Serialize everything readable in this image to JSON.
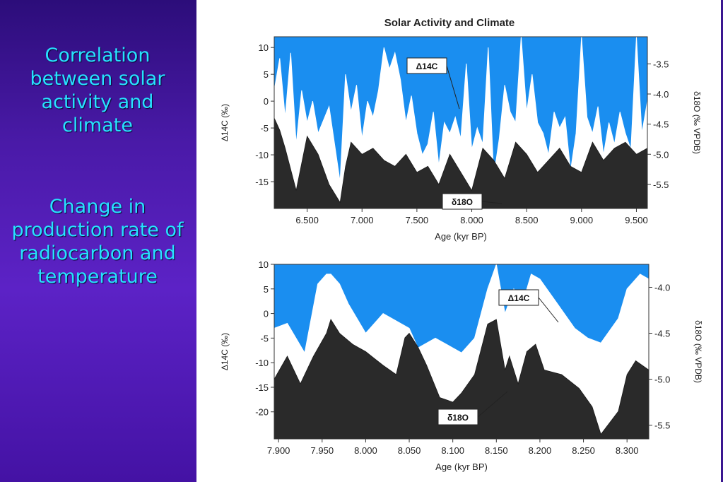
{
  "slide": {
    "heading": "Correlation between solar activity and climate",
    "subheading": "Change in production rate of radiocarbon and temperature",
    "figure_title": "Solar Activity and Climate",
    "colors": {
      "panel": "#4a1aa8",
      "text": "#27e2ff",
      "sky": "#1a8ef0",
      "dark": "#2a2a2a"
    }
  },
  "chart_data": [
    {
      "type": "area",
      "title": "Solar Activity and Climate",
      "xlabel": "Age (kyr BP)",
      "ylabel": "Δ14C (‰)",
      "y2label": "δ18O (‰ VPDB)",
      "xlim": [
        6.2,
        9.6
      ],
      "ylim": [
        -20,
        12
      ],
      "y2lim": [
        -5.9,
        -3.05
      ],
      "xticks": [
        "6.500",
        "7.000",
        "7.500",
        "8.000",
        "8.500",
        "9.000",
        "9.500"
      ],
      "yticks": [
        "10",
        "5",
        "0",
        "-5",
        "-10",
        "-15"
      ],
      "y2ticks": [
        "-3.5",
        "-4.0",
        "-4.5",
        "-5.0",
        "-5.5"
      ],
      "annotations": [
        "Δ14C",
        "δ18O"
      ],
      "series": [
        {
          "name": "Δ14C",
          "x": [
            6.2,
            6.25,
            6.3,
            6.35,
            6.4,
            6.45,
            6.5,
            6.55,
            6.6,
            6.7,
            6.8,
            6.85,
            6.9,
            6.95,
            7.0,
            7.05,
            7.1,
            7.15,
            7.2,
            7.25,
            7.3,
            7.35,
            7.4,
            7.45,
            7.5,
            7.55,
            7.6,
            7.65,
            7.7,
            7.75,
            7.8,
            7.85,
            7.9,
            7.95,
            8.0,
            8.05,
            8.1,
            8.15,
            8.2,
            8.25,
            8.3,
            8.35,
            8.4,
            8.45,
            8.5,
            8.55,
            8.6,
            8.65,
            8.7,
            8.75,
            8.8,
            8.85,
            8.9,
            8.95,
            9.0,
            9.05,
            9.1,
            9.15,
            9.2,
            9.25,
            9.3,
            9.35,
            9.4,
            9.45,
            9.5,
            9.55,
            9.6
          ],
          "values": [
            2,
            8,
            -3,
            9,
            -8,
            2,
            -4,
            0,
            -6,
            -1,
            -15,
            5,
            -2,
            3,
            -7,
            0,
            -3,
            2,
            10,
            6,
            9,
            4,
            -4,
            1,
            -6,
            -10,
            -8,
            -2,
            -12,
            -4,
            -6,
            -3,
            -7,
            7,
            -9,
            -5,
            -8,
            10,
            -14,
            -7,
            3,
            -2,
            -4,
            12,
            -2,
            5,
            -4,
            -6,
            -10,
            -2,
            -5,
            -3,
            -13,
            -6,
            13,
            -3,
            -6,
            -1,
            -10,
            -4,
            -8,
            -2,
            -6,
            -9,
            12,
            -6,
            0
          ]
        },
        {
          "name": "δ18O",
          "x": [
            6.2,
            6.25,
            6.3,
            6.4,
            6.5,
            6.6,
            6.7,
            6.8,
            6.85,
            6.9,
            7.0,
            7.1,
            7.2,
            7.3,
            7.4,
            7.5,
            7.6,
            7.7,
            7.8,
            7.9,
            8.0,
            8.1,
            8.2,
            8.3,
            8.4,
            8.5,
            8.6,
            8.7,
            8.8,
            8.9,
            9.0,
            9.1,
            9.2,
            9.3,
            9.4,
            9.5,
            9.6
          ],
          "values": [
            -4.4,
            -4.6,
            -4.9,
            -5.6,
            -4.7,
            -5.0,
            -5.5,
            -5.8,
            -5.2,
            -4.8,
            -5.0,
            -4.9,
            -5.1,
            -5.2,
            -5.0,
            -5.3,
            -5.2,
            -5.5,
            -5.0,
            -5.3,
            -5.6,
            -4.9,
            -5.1,
            -5.4,
            -4.8,
            -5.0,
            -5.3,
            -5.1,
            -4.9,
            -5.2,
            -5.3,
            -4.8,
            -5.1,
            -4.9,
            -4.8,
            -5.0,
            -4.9
          ]
        }
      ]
    },
    {
      "type": "area",
      "xlabel": "Age (kyr BP)",
      "ylabel": "Δ14C (‰)",
      "y2label": "δ18O (‰ VPDB)",
      "xlim": [
        7.895,
        8.325
      ],
      "ylim": [
        -25.5,
        10
      ],
      "y2lim": [
        -5.65,
        -3.75
      ],
      "xticks": [
        "7.900",
        "7.950",
        "8.000",
        "8.050",
        "8.100",
        "8.150",
        "8.200",
        "8.250",
        "8.300"
      ],
      "yticks": [
        "10",
        "5",
        "0",
        "-5",
        "-10",
        "-15",
        "-20"
      ],
      "y2ticks": [
        "-4.0",
        "-4.5",
        "-5.0",
        "-5.5"
      ],
      "annotations": [
        "Δ14C",
        "δ18O"
      ],
      "series": [
        {
          "name": "Δ14C",
          "x": [
            7.895,
            7.91,
            7.93,
            7.945,
            7.955,
            7.96,
            7.97,
            7.98,
            8.0,
            8.02,
            8.03,
            8.05,
            8.06,
            8.08,
            8.09,
            8.11,
            8.125,
            8.14,
            8.15,
            8.16,
            8.17,
            8.18,
            8.19,
            8.2,
            8.22,
            8.24,
            8.255,
            8.27,
            8.29,
            8.3,
            8.315,
            8.325
          ],
          "values": [
            -3,
            -2,
            -8,
            6,
            8,
            8,
            6,
            2,
            -4,
            0,
            -1,
            -3,
            -7,
            -5,
            -6,
            -8,
            -5,
            5,
            10,
            0,
            5,
            2,
            8,
            7,
            2,
            -3,
            -5,
            -6,
            -1,
            5,
            8,
            7
          ]
        },
        {
          "name": "δ18O",
          "x": [
            7.895,
            7.91,
            7.925,
            7.94,
            7.955,
            7.96,
            7.97,
            7.985,
            8.0,
            8.02,
            8.035,
            8.045,
            8.05,
            8.06,
            8.07,
            8.085,
            8.1,
            8.11,
            8.125,
            8.14,
            8.15,
            8.16,
            8.165,
            8.175,
            8.185,
            8.195,
            8.205,
            8.225,
            8.245,
            8.26,
            8.27,
            8.29,
            8.3,
            8.31,
            8.325
          ],
          "values": [
            -5.0,
            -4.75,
            -5.05,
            -4.75,
            -4.5,
            -4.35,
            -4.5,
            -4.62,
            -4.7,
            -4.85,
            -4.95,
            -4.55,
            -4.5,
            -4.65,
            -4.85,
            -5.2,
            -5.25,
            -5.15,
            -4.95,
            -4.4,
            -4.35,
            -4.9,
            -4.75,
            -5.05,
            -4.7,
            -4.62,
            -4.9,
            -4.95,
            -5.1,
            -5.3,
            -5.6,
            -5.35,
            -4.95,
            -4.8,
            -4.9
          ]
        }
      ]
    }
  ]
}
